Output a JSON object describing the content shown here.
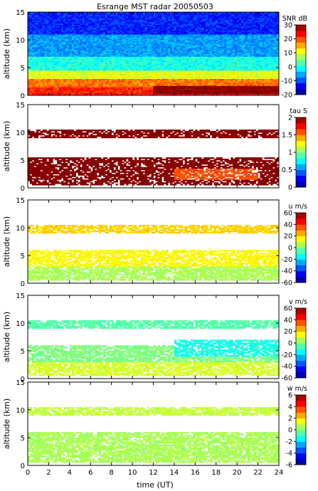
{
  "chart_data": {
    "type": "heatmap",
    "title": "Esrange MST radar 20050503",
    "xlabel": "time (UT)",
    "xlim": [
      0,
      24
    ],
    "xticks": [
      0,
      2,
      4,
      6,
      8,
      10,
      12,
      14,
      16,
      18,
      20,
      22,
      24
    ],
    "panels": [
      {
        "id": "snr",
        "ylabel": "altitude (km)",
        "ylim": [
          0,
          15
        ],
        "yticks": [
          0,
          5,
          10,
          15
        ],
        "colorbar_label": "SNR dB",
        "colorbar_range": [
          -20,
          30
        ],
        "colorbar_ticks": [
          -20,
          -10,
          0,
          10,
          20,
          30
        ],
        "colormap": "jet",
        "fill": "full",
        "layers": [
          {
            "from": 0,
            "to": 1.5,
            "value": 22
          },
          {
            "from": 1.5,
            "to": 3,
            "value": 18
          },
          {
            "from": 3,
            "to": 4.5,
            "value": 10
          },
          {
            "from": 4.5,
            "to": 7,
            "value": 0
          },
          {
            "from": 7,
            "to": 11,
            "value": -6
          },
          {
            "from": 11,
            "to": 15,
            "value": -12
          }
        ],
        "features": [
          {
            "t_from": 12,
            "t_to": 24,
            "alt_from": 0.3,
            "alt_to": 1.8,
            "value": 30
          }
        ]
      },
      {
        "id": "tau",
        "ylabel": "altitude (km)",
        "ylim": [
          0,
          15
        ],
        "yticks": [
          0,
          5,
          10,
          15
        ],
        "colorbar_label": "tau S",
        "colorbar_range": [
          0,
          2
        ],
        "colorbar_ticks": [
          0,
          0.5,
          1,
          1.5,
          2
        ],
        "colormap": "jet",
        "fill": "sparse",
        "layers": [
          {
            "from": 0.5,
            "to": 5.5,
            "value": 2
          },
          {
            "from": 9,
            "to": 10.5,
            "value": 2
          }
        ],
        "features": [
          {
            "t_from": 14,
            "t_to": 22,
            "alt_from": 1.5,
            "alt_to": 3.5,
            "value": 1.6
          }
        ]
      },
      {
        "id": "u",
        "ylabel": "altitude (km)",
        "ylim": [
          0,
          15
        ],
        "yticks": [
          0,
          5,
          10,
          15
        ],
        "colorbar_label": "u m/s",
        "colorbar_range": [
          -60,
          60
        ],
        "colorbar_ticks": [
          -60,
          -40,
          -20,
          0,
          20,
          40,
          60
        ],
        "colormap": "jet",
        "fill": "sparse",
        "layers": [
          {
            "from": 0.5,
            "to": 3,
            "value": 5
          },
          {
            "from": 3,
            "to": 6,
            "value": 15
          },
          {
            "from": 9,
            "to": 10.5,
            "value": 20
          }
        ],
        "features": []
      },
      {
        "id": "v",
        "ylabel": "altitude (km)",
        "ylim": [
          0,
          15
        ],
        "yticks": [
          0,
          5,
          10,
          15
        ],
        "colorbar_label": "v m/s",
        "colorbar_range": [
          -60,
          60
        ],
        "colorbar_ticks": [
          -60,
          -40,
          -20,
          0,
          20,
          40,
          60
        ],
        "colormap": "jet",
        "fill": "sparse",
        "layers": [
          {
            "from": 0.5,
            "to": 3,
            "value": 10
          },
          {
            "from": 3,
            "to": 6,
            "value": 0
          },
          {
            "from": 9,
            "to": 10.5,
            "value": -5
          }
        ],
        "features": [
          {
            "t_from": 14,
            "t_to": 24,
            "alt_from": 4,
            "alt_to": 7,
            "value": -12
          }
        ]
      },
      {
        "id": "w",
        "ylabel": "altitude (km)",
        "ylim": [
          0,
          15
        ],
        "yticks": [
          0,
          5,
          10,
          15
        ],
        "colorbar_label": "w m/s",
        "colorbar_range": [
          -6,
          6
        ],
        "colorbar_ticks": [
          -6,
          -4,
          -2,
          0,
          2,
          4,
          6
        ],
        "colormap": "jet",
        "fill": "sparse",
        "layers": [
          {
            "from": 0.5,
            "to": 6,
            "value": 0.5
          },
          {
            "from": 9,
            "to": 10.5,
            "value": 0.8
          }
        ],
        "features": []
      }
    ]
  }
}
